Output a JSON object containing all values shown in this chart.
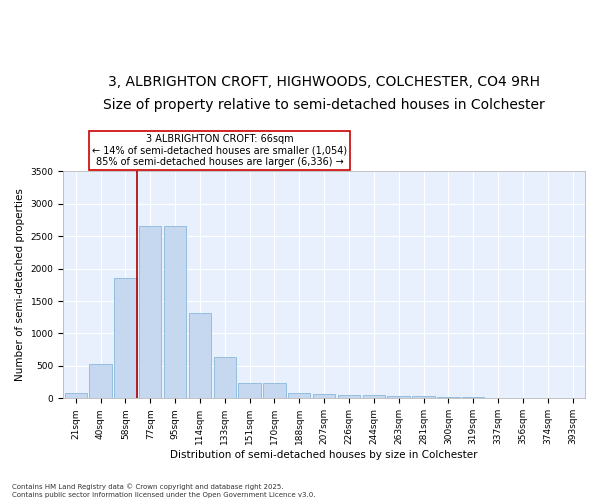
{
  "title1": "3, ALBRIGHTON CROFT, HIGHWOODS, COLCHESTER, CO4 9RH",
  "title2": "Size of property relative to semi-detached houses in Colchester",
  "xlabel": "Distribution of semi-detached houses by size in Colchester",
  "ylabel": "Number of semi-detached properties",
  "categories": [
    "21sqm",
    "40sqm",
    "58sqm",
    "77sqm",
    "95sqm",
    "114sqm",
    "133sqm",
    "151sqm",
    "170sqm",
    "188sqm",
    "207sqm",
    "226sqm",
    "244sqm",
    "263sqm",
    "281sqm",
    "300sqm",
    "319sqm",
    "337sqm",
    "356sqm",
    "374sqm",
    "393sqm"
  ],
  "values": [
    75,
    530,
    1850,
    2650,
    2650,
    1310,
    640,
    230,
    230,
    90,
    60,
    50,
    45,
    35,
    30,
    15,
    15,
    5,
    3,
    2,
    2
  ],
  "bar_color": "#c5d8f0",
  "bar_edge_color": "#7bafd4",
  "bg_color": "#e8f0fe",
  "grid_color": "#ffffff",
  "property_label": "3 ALBRIGHTON CROFT: 66sqm",
  "annotation_smaller": "← 14% of semi-detached houses are smaller (1,054)",
  "annotation_larger": "85% of semi-detached houses are larger (6,336) →",
  "ylim": [
    0,
    3500
  ],
  "footnote1": "Contains HM Land Registry data © Crown copyright and database right 2025.",
  "footnote2": "Contains public sector information licensed under the Open Government Licence v3.0.",
  "title1_fontsize": 10,
  "title2_fontsize": 8.5,
  "axis_fontsize": 7.5,
  "tick_fontsize": 6.5,
  "annot_fontsize": 7,
  "footnote_fontsize": 5
}
